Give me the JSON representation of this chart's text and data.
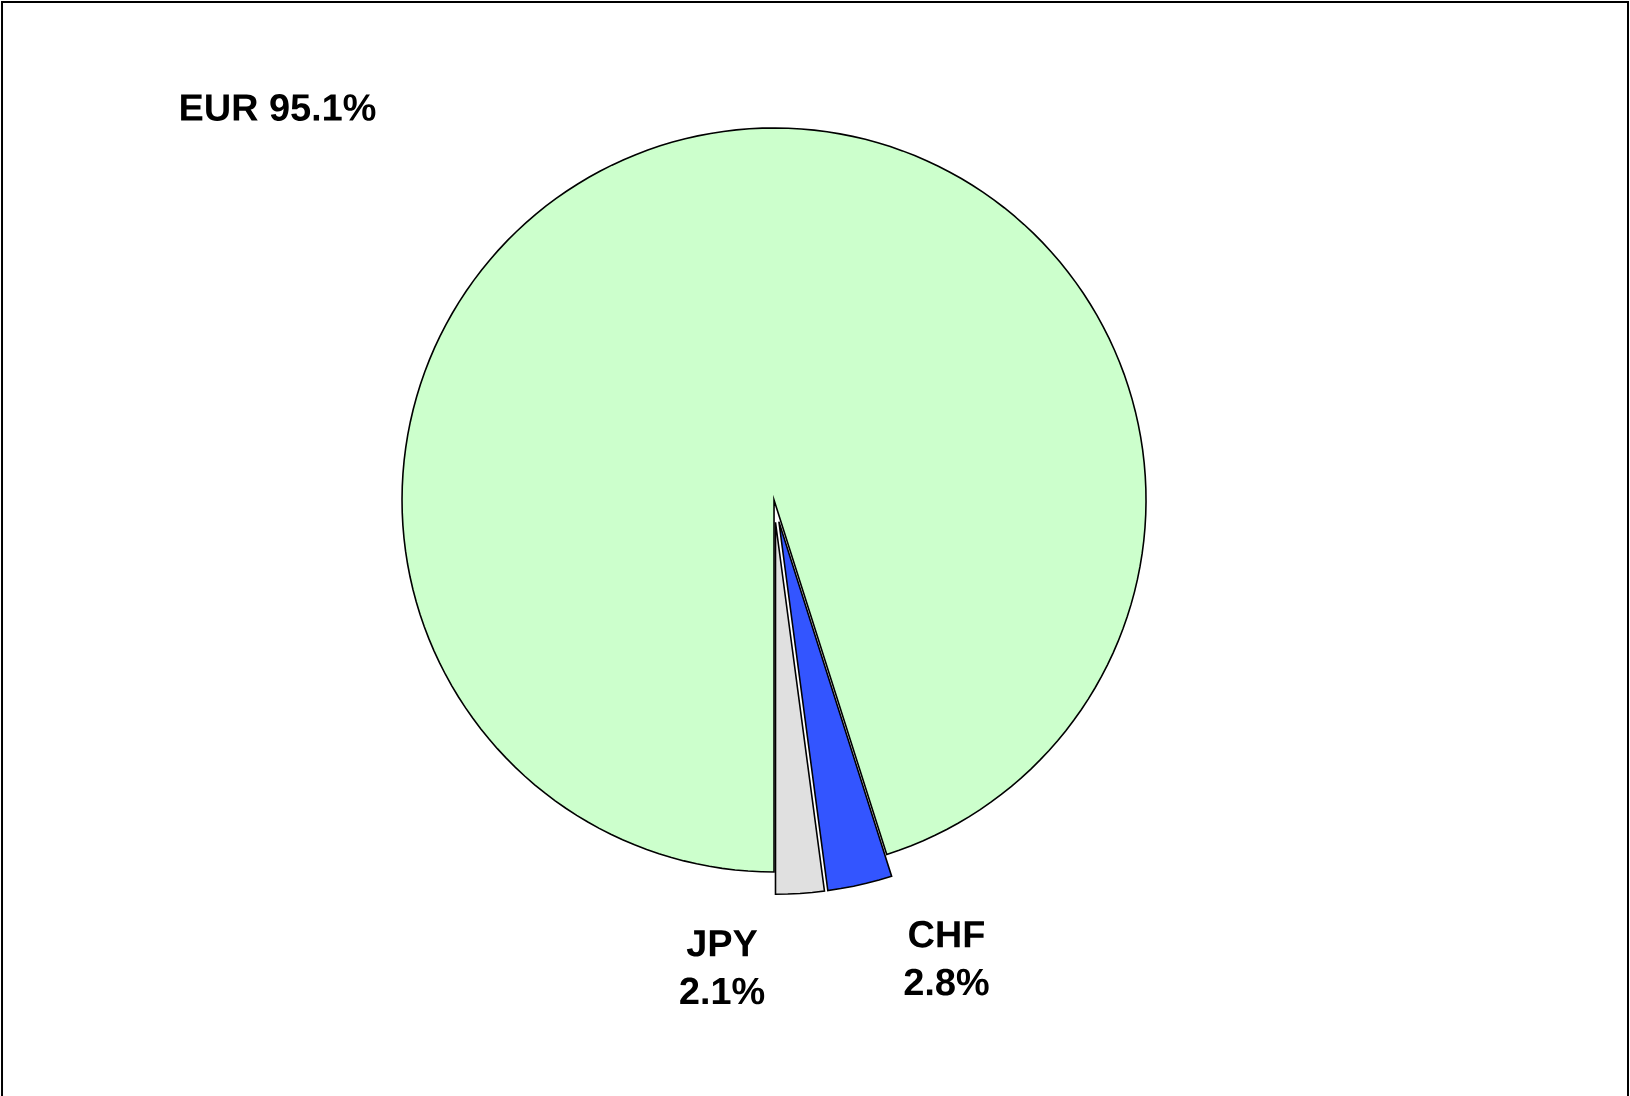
{
  "chart_data": {
    "type": "pie",
    "categories": [
      "EUR",
      "JPY",
      "CHF"
    ],
    "values": [
      95.1,
      2.1,
      2.8
    ],
    "colors": [
      "#ccffcc",
      "#e0e0e0",
      "#3355ff"
    ],
    "value_labels": [
      "95.1%",
      "2.1%",
      "2.8%"
    ]
  }
}
